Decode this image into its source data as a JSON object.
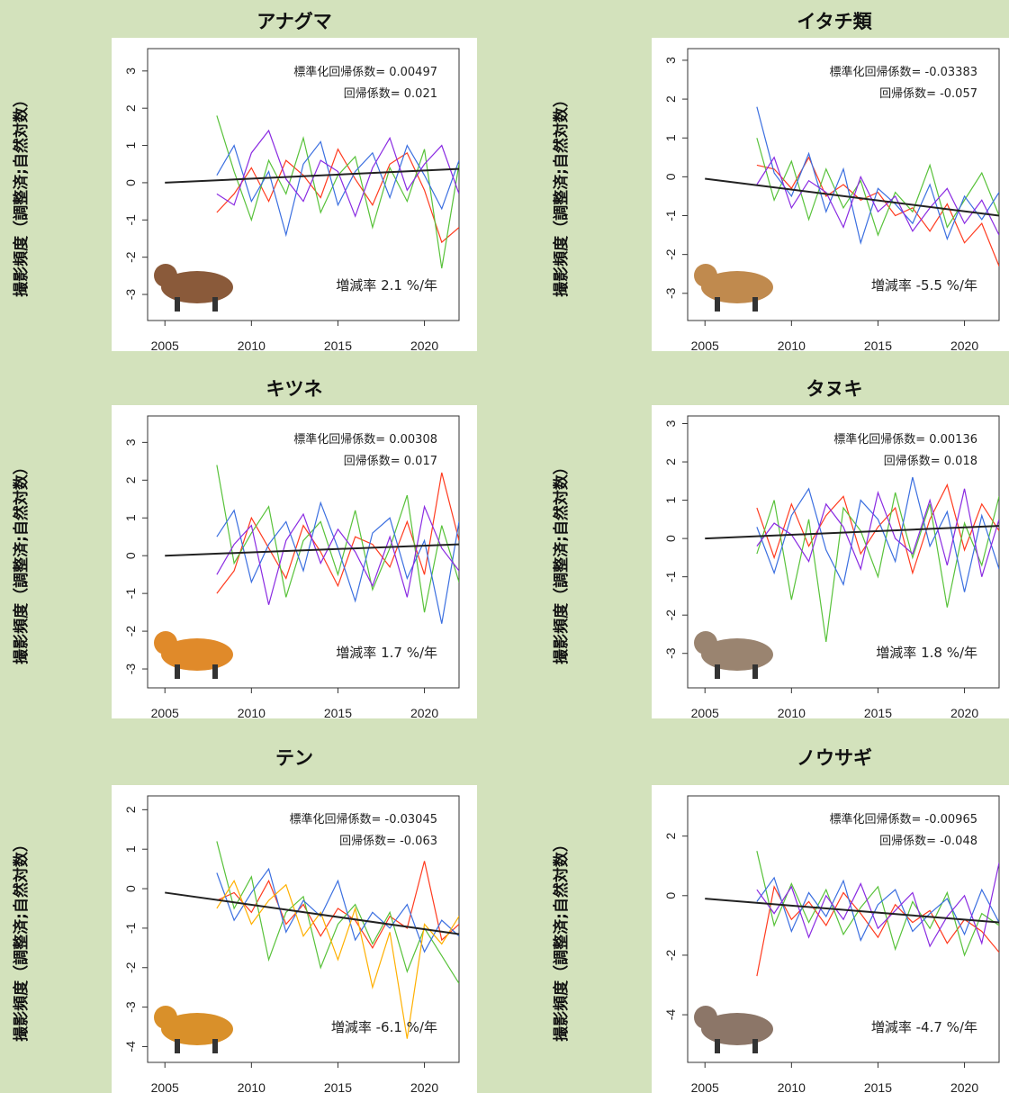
{
  "chart_data": [
    {
      "type": "line",
      "title": "アナグマ",
      "y_label": "撮影頻度（調整済;自然対数）",
      "annotations": [
        "標準化回帰係数= 0.00497",
        "回帰係数= 0.021",
        "増減率 2.1 %/年"
      ],
      "xlim": [
        2004,
        2022
      ],
      "xticks": [
        2005,
        2010,
        2015,
        2020
      ],
      "ylim": [
        -3.7,
        3.6
      ],
      "yticks": [
        -3,
        -2,
        -1,
        0,
        1,
        2,
        3
      ],
      "x": [
        2008,
        2009,
        2010,
        2011,
        2012,
        2013,
        2014,
        2015,
        2016,
        2017,
        2018,
        2019,
        2020,
        2021,
        2022
      ],
      "series": [
        {
          "color": "#ff3b1f",
          "values": [
            -0.8,
            -0.3,
            0.4,
            -0.5,
            0.6,
            0.2,
            -0.4,
            0.9,
            0.1,
            -0.6,
            0.5,
            0.8,
            -0.2,
            -1.6,
            -1.2
          ]
        },
        {
          "color": "#58c23a",
          "values": [
            1.8,
            0.3,
            -1.0,
            0.6,
            -0.3,
            1.2,
            -0.8,
            0.2,
            0.7,
            -1.2,
            0.4,
            -0.5,
            0.9,
            -2.3,
            0.5
          ]
        },
        {
          "color": "#3b6fe0",
          "values": [
            0.2,
            1.0,
            -0.5,
            0.3,
            -1.4,
            0.5,
            1.1,
            -0.6,
            0.3,
            0.8,
            -0.4,
            1.0,
            0.2,
            -0.7,
            0.6
          ]
        },
        {
          "color": "#8a2be2",
          "values": [
            -0.3,
            -0.6,
            0.8,
            1.4,
            0.1,
            -0.5,
            0.6,
            0.3,
            -0.9,
            0.4,
            1.2,
            -0.2,
            0.5,
            1.0,
            -0.3
          ]
        }
      ],
      "trend": {
        "x": [
          2005,
          2022
        ],
        "values": [
          0,
          0.37
        ],
        "color": "#222222"
      }
    },
    {
      "type": "line",
      "title": "イタチ類",
      "y_label": "撮影頻度（調整済;自然対数）",
      "annotations": [
        "標準化回帰係数= -0.03383",
        "回帰係数= -0.057",
        "増減率 -5.5 %/年"
      ],
      "xlim": [
        2004,
        2022
      ],
      "xticks": [
        2005,
        2010,
        2015,
        2020
      ],
      "ylim": [
        -3.7,
        3.3
      ],
      "yticks": [
        -3,
        -2,
        -1,
        0,
        1,
        2,
        3
      ],
      "x": [
        2008,
        2009,
        2010,
        2011,
        2012,
        2013,
        2014,
        2015,
        2016,
        2017,
        2018,
        2019,
        2020,
        2021,
        2022
      ],
      "series": [
        {
          "color": "#ff3b1f",
          "values": [
            0.3,
            0.2,
            -0.3,
            0.5,
            -0.5,
            -0.2,
            -0.6,
            -0.4,
            -1.0,
            -0.8,
            -1.4,
            -0.7,
            -1.7,
            -1.2,
            -2.3
          ]
        },
        {
          "color": "#58c23a",
          "values": [
            1.0,
            -0.6,
            0.4,
            -1.1,
            0.2,
            -0.8,
            -0.1,
            -1.5,
            -0.4,
            -0.9,
            0.3,
            -1.3,
            -0.6,
            0.1,
            -1.0
          ]
        },
        {
          "color": "#3b6fe0",
          "values": [
            1.8,
            0.1,
            -0.5,
            0.6,
            -0.9,
            0.2,
            -1.7,
            -0.3,
            -0.7,
            -1.2,
            -0.2,
            -1.6,
            -0.5,
            -1.1,
            -0.4
          ]
        },
        {
          "color": "#8a2be2",
          "values": [
            -0.2,
            0.5,
            -0.8,
            -0.1,
            -0.4,
            -1.3,
            0.0,
            -0.9,
            -0.5,
            -1.4,
            -0.8,
            -0.3,
            -1.2,
            -0.6,
            -1.5
          ]
        }
      ],
      "trend": {
        "x": [
          2005,
          2022
        ],
        "values": [
          -0.05,
          -1.0
        ],
        "color": "#222222"
      }
    },
    {
      "type": "line",
      "title": "キツネ",
      "y_label": "撮影頻度（調整済;自然対数）",
      "annotations": [
        "標準化回帰係数= 0.00308",
        "回帰係数= 0.017",
        "増減率 1.7 %/年"
      ],
      "xlim": [
        2004,
        2022
      ],
      "xticks": [
        2005,
        2010,
        2015,
        2020
      ],
      "ylim": [
        -3.5,
        3.7
      ],
      "yticks": [
        -3,
        -2,
        -1,
        0,
        1,
        2,
        3
      ],
      "x": [
        2008,
        2009,
        2010,
        2011,
        2012,
        2013,
        2014,
        2015,
        2016,
        2017,
        2018,
        2019,
        2020,
        2021,
        2022
      ],
      "series": [
        {
          "color": "#ff3b1f",
          "values": [
            -1.0,
            -0.4,
            1.0,
            0.2,
            -0.6,
            0.8,
            0.1,
            -0.8,
            0.5,
            0.3,
            -0.3,
            0.9,
            -0.5,
            2.2,
            0.4
          ]
        },
        {
          "color": "#58c23a",
          "values": [
            2.4,
            -0.2,
            0.6,
            1.3,
            -1.1,
            0.4,
            0.9,
            -0.5,
            1.2,
            -0.9,
            0.2,
            1.6,
            -1.5,
            0.8,
            -0.7
          ]
        },
        {
          "color": "#3b6fe0",
          "values": [
            0.5,
            1.2,
            -0.7,
            0.3,
            0.9,
            -0.4,
            1.4,
            0.2,
            -1.2,
            0.6,
            1.0,
            -0.6,
            0.4,
            -1.8,
            0.9
          ]
        },
        {
          "color": "#8a2be2",
          "values": [
            -0.5,
            0.3,
            0.8,
            -1.3,
            0.4,
            1.1,
            -0.2,
            0.7,
            0.1,
            -0.8,
            0.5,
            -1.1,
            1.3,
            0.2,
            -0.4
          ]
        }
      ],
      "trend": {
        "x": [
          2005,
          2022
        ],
        "values": [
          0,
          0.3
        ],
        "color": "#222222"
      }
    },
    {
      "type": "line",
      "title": "タヌキ",
      "y_label": "撮影頻度（調整済;自然対数）",
      "annotations": [
        "標準化回帰係数= 0.00136",
        "回帰係数= 0.018",
        "増減率 1.8 %/年"
      ],
      "xlim": [
        2004,
        2022
      ],
      "xticks": [
        2005,
        2010,
        2015,
        2020
      ],
      "ylim": [
        -3.9,
        3.2
      ],
      "yticks": [
        -3,
        -2,
        -1,
        0,
        1,
        2,
        3
      ],
      "x": [
        2008,
        2009,
        2010,
        2011,
        2012,
        2013,
        2014,
        2015,
        2016,
        2017,
        2018,
        2019,
        2020,
        2021,
        2022
      ],
      "series": [
        {
          "color": "#ff3b1f",
          "values": [
            0.8,
            -0.5,
            0.9,
            -0.2,
            0.6,
            1.1,
            -0.4,
            0.3,
            0.8,
            -0.9,
            0.5,
            1.4,
            -0.3,
            0.9,
            0.2
          ]
        },
        {
          "color": "#58c23a",
          "values": [
            -0.4,
            1.0,
            -1.6,
            0.5,
            -2.7,
            0.8,
            0.2,
            -1.0,
            1.2,
            -0.5,
            0.9,
            -1.8,
            0.4,
            -0.7,
            1.1
          ]
        },
        {
          "color": "#3b6fe0",
          "values": [
            0.3,
            -0.9,
            0.6,
            1.3,
            -0.3,
            -1.2,
            1.0,
            0.5,
            -0.6,
            1.6,
            -0.2,
            0.7,
            -1.4,
            0.6,
            -0.8
          ]
        },
        {
          "color": "#8a2be2",
          "values": [
            -0.2,
            0.4,
            0.1,
            -0.6,
            0.9,
            0.3,
            -0.8,
            1.2,
            0.0,
            -0.4,
            1.0,
            -0.7,
            1.3,
            -1.0,
            0.5
          ]
        }
      ],
      "trend": {
        "x": [
          2005,
          2022
        ],
        "values": [
          0,
          0.33
        ],
        "color": "#222222"
      }
    },
    {
      "type": "line",
      "title": "テン",
      "y_label": "撮影頻度（調整済;自然対数）",
      "annotations": [
        "標準化回帰係数= -0.03045",
        "回帰係数= -0.063",
        "増減率 -6.1 %/年"
      ],
      "xlim": [
        2004,
        2022
      ],
      "xticks": [
        2005,
        2010,
        2015,
        2020
      ],
      "ylim": [
        -4.4,
        2.35
      ],
      "yticks": [
        -4,
        -3,
        -2,
        -1,
        0,
        1,
        2
      ],
      "x": [
        2008,
        2009,
        2010,
        2011,
        2012,
        2013,
        2014,
        2015,
        2016,
        2017,
        2018,
        2019,
        2020,
        2021,
        2022
      ],
      "series": [
        {
          "color": "#ff3b1f",
          "values": [
            -0.3,
            -0.1,
            -0.6,
            0.2,
            -0.9,
            -0.4,
            -1.2,
            -0.5,
            -0.8,
            -1.5,
            -0.7,
            -1.0,
            0.7,
            -1.3,
            -0.9
          ]
        },
        {
          "color": "#58c23a",
          "values": [
            1.2,
            -0.5,
            0.3,
            -1.8,
            -0.6,
            -0.2,
            -2.0,
            -0.9,
            -0.4,
            -1.4,
            -0.6,
            -2.1,
            -1.0,
            -1.7,
            -2.4
          ]
        },
        {
          "color": "#3b6fe0",
          "values": [
            0.4,
            -0.8,
            -0.1,
            0.5,
            -1.1,
            -0.3,
            -0.7,
            0.2,
            -1.3,
            -0.6,
            -1.0,
            -0.4,
            -1.6,
            -0.8,
            -1.2
          ]
        },
        {
          "color": "#ffb000",
          "values": [
            -0.5,
            0.2,
            -0.9,
            -0.3,
            0.1,
            -1.2,
            -0.6,
            -1.8,
            -0.5,
            -2.5,
            -1.1,
            -3.8,
            -0.9,
            -1.4,
            -0.7
          ]
        }
      ],
      "trend": {
        "x": [
          2005,
          2022
        ],
        "values": [
          -0.1,
          -1.15
        ],
        "color": "#222222"
      }
    },
    {
      "type": "line",
      "title": "ノウサギ",
      "y_label": "撮影頻度（調整済;自然対数）",
      "annotations": [
        "標準化回帰係数= -0.00965",
        "回帰係数= -0.048",
        "増減率 -4.7 %/年"
      ],
      "xlim": [
        2004,
        2022
      ],
      "xticks": [
        2005,
        2010,
        2015,
        2020
      ],
      "ylim": [
        -5.6,
        3.35
      ],
      "yticks": [
        -4,
        -2,
        0,
        2
      ],
      "x": [
        2008,
        2009,
        2010,
        2011,
        2012,
        2013,
        2014,
        2015,
        2016,
        2017,
        2018,
        2019,
        2020,
        2021,
        2022
      ],
      "series": [
        {
          "color": "#ff3b1f",
          "values": [
            -2.7,
            0.3,
            -0.8,
            -0.2,
            -1.0,
            0.1,
            -0.6,
            -1.4,
            -0.3,
            -0.9,
            -0.5,
            -1.6,
            -0.8,
            -1.2,
            -1.9
          ]
        },
        {
          "color": "#58c23a",
          "values": [
            1.5,
            -1.0,
            0.4,
            -0.9,
            0.2,
            -1.3,
            -0.4,
            0.3,
            -1.8,
            -0.2,
            -1.1,
            0.1,
            -2.0,
            -0.6,
            -1.0
          ]
        },
        {
          "color": "#3b6fe0",
          "values": [
            -0.2,
            0.6,
            -1.2,
            0.1,
            -0.7,
            0.5,
            -1.5,
            -0.3,
            0.2,
            -1.2,
            -0.6,
            -0.1,
            -1.3,
            0.2,
            -0.9
          ]
        },
        {
          "color": "#8a2be2",
          "values": [
            0.2,
            -0.6,
            0.3,
            -1.4,
            0.0,
            -0.8,
            0.4,
            -1.1,
            -0.5,
            0.1,
            -1.7,
            -0.7,
            0.0,
            -1.6,
            1.1
          ]
        }
      ],
      "trend": {
        "x": [
          2005,
          2022
        ],
        "values": [
          -0.1,
          -0.9
        ],
        "color": "#222222"
      }
    }
  ]
}
